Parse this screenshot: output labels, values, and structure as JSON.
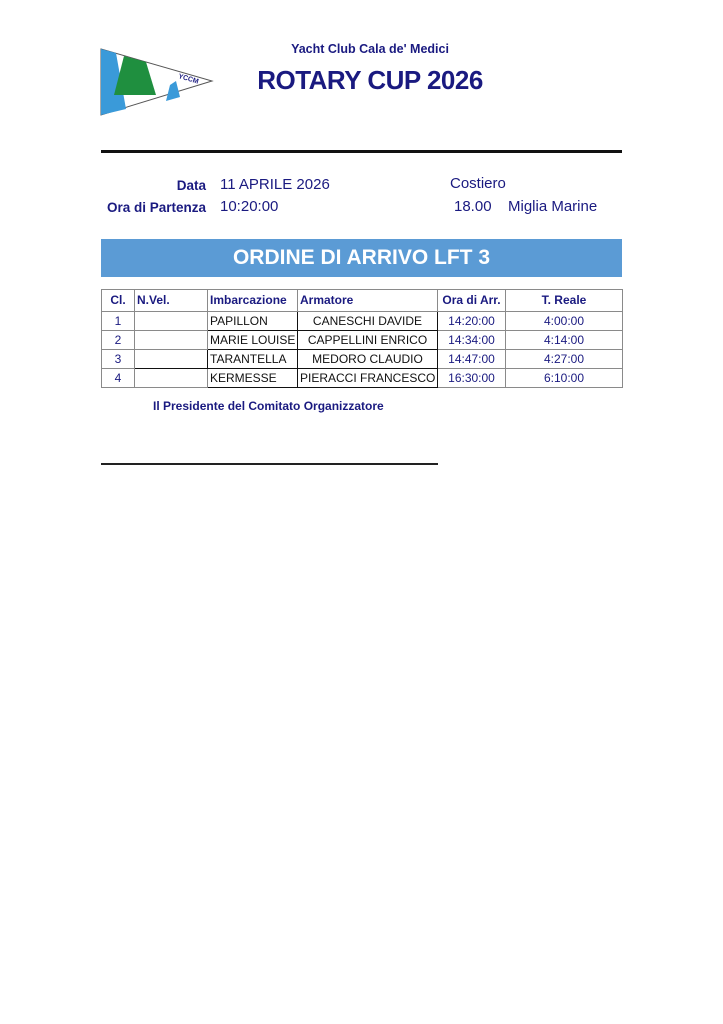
{
  "header": {
    "club": "Yacht Club Cala de' Medici",
    "title": "ROTARY CUP 2026",
    "logo_text": "YCCM"
  },
  "info": {
    "date_label": "Data",
    "date": "11 APRILE 2026",
    "start_label": "Ora di Partenza",
    "start": "10:20:00",
    "course": "Costiero",
    "distance": "18.00",
    "distance_unit": "Miglia Marine"
  },
  "banner": "ORDINE DI ARRIVO LFT 3",
  "table": {
    "headers": [
      "Cl.",
      "N.Vel.",
      "Imbarcazione",
      "Armatore",
      "Ora di Arr.",
      "T. Reale"
    ],
    "rows": [
      {
        "cl": "1",
        "nvel": "",
        "boat": "PAPILLON",
        "owner": "CANESCHI DAVIDE",
        "arr": "14:20:00",
        "time": "4:00:00"
      },
      {
        "cl": "2",
        "nvel": "",
        "boat": "MARIE LOUISE",
        "owner": "CAPPELLINI ENRICO",
        "arr": "14:34:00",
        "time": "4:14:00"
      },
      {
        "cl": "3",
        "nvel": "",
        "boat": "TARANTELLA",
        "owner": "MEDORO CLAUDIO",
        "arr": "14:47:00",
        "time": "4:27:00"
      },
      {
        "cl": "4",
        "nvel": "",
        "boat": "KERMESSE",
        "owner": "PIERACCI FRANCESCO",
        "arr": "16:30:00",
        "time": "6:10:00"
      }
    ]
  },
  "footer": {
    "president": "Il Presidente del Comitato Organizzatore"
  }
}
